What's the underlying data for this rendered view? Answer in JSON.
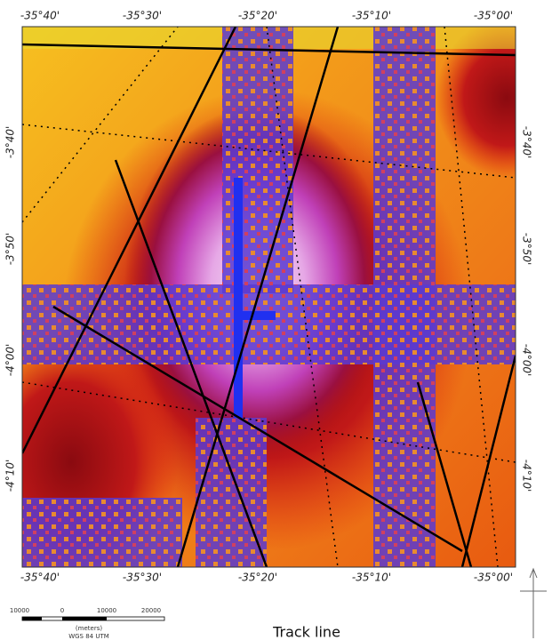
{
  "map": {
    "top_labels": [
      "-35°40'",
      "-35°30'",
      "-35°20'",
      "-35°10'",
      "-35°00'"
    ],
    "bottom_labels": [
      "-35°40'",
      "-35°30'",
      "-35°20'",
      "-35°10'",
      "-35°00'"
    ],
    "left_labels": [
      "-3°40'",
      "-3°50'",
      "-4°00'",
      "-4°10'"
    ],
    "right_labels": [
      "-3°40'",
      "-3°50'",
      "-4°00'",
      "-4°10'"
    ]
  },
  "scale_bar": {
    "labels": [
      "10000",
      "0",
      "10000",
      "20000"
    ],
    "unit": "(meters)",
    "datum": "WGS 84 UTM"
  },
  "caption": "Track line"
}
